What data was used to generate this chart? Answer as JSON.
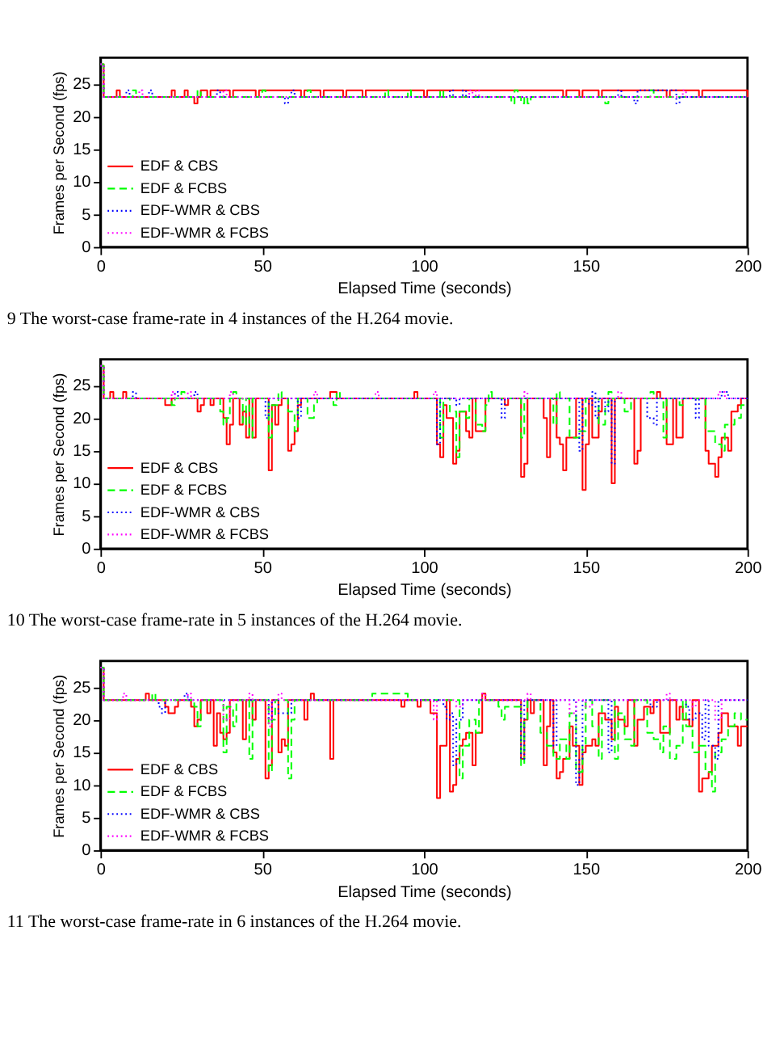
{
  "chart_data": [
    {
      "type": "step",
      "xlabel": "Elapsed Time (seconds)",
      "ylabel": "Frames per Second (fps)",
      "xlim": [
        0,
        200
      ],
      "xticks": [
        0,
        50,
        100,
        150,
        200
      ],
      "ylim": [
        0,
        29
      ],
      "yticks": [
        0,
        5,
        10,
        15,
        20,
        25
      ],
      "grid": false,
      "legend": "bottom left",
      "annotations": [
        "9 The worst-case frame-rate in 4 instances of the H.264 movie."
      ],
      "series": [
        {
          "name": "EDF & CBS",
          "color": "#ff0000",
          "line_style": "solid",
          "x": [
            0,
            1,
            5,
            6,
            22,
            23,
            26,
            27,
            29,
            30,
            31,
            33,
            34,
            40,
            41,
            48,
            49,
            62,
            63,
            68,
            69,
            75,
            76,
            81,
            82,
            100,
            101,
            143,
            144,
            148,
            149,
            154,
            155,
            175,
            176,
            185,
            186,
            200
          ],
          "values": [
            28,
            23,
            24,
            23,
            24,
            23,
            24,
            23,
            22,
            23,
            24,
            23,
            24,
            23,
            24,
            23,
            24,
            23,
            24,
            23,
            24,
            23,
            24,
            23,
            24,
            23,
            24,
            23,
            24,
            23,
            24,
            23,
            24,
            23,
            24,
            23,
            24,
            23
          ]
        },
        {
          "name": "EDF & FCBS",
          "color": "#00ff00",
          "line_style": "dashed",
          "x": [
            0,
            1,
            10,
            11,
            30,
            31,
            50,
            51,
            64,
            65,
            88,
            89,
            95,
            96,
            105,
            106,
            127,
            128,
            129,
            130,
            131,
            132,
            133,
            156,
            157,
            170,
            171,
            200
          ],
          "values": [
            28,
            23,
            24,
            23,
            24,
            23,
            24,
            23,
            24,
            23,
            24,
            23,
            24,
            23,
            24,
            23,
            22,
            24,
            23,
            22,
            23,
            22,
            23,
            22,
            23,
            24,
            23,
            23
          ]
        },
        {
          "name": "EDF-WMR & CBS",
          "color": "#0000ff",
          "line_style": "dotted",
          "x": [
            0,
            1,
            8,
            9,
            15,
            16,
            36,
            37,
            57,
            58,
            59,
            60,
            108,
            109,
            112,
            113,
            160,
            161,
            165,
            166,
            178,
            179,
            200
          ],
          "values": [
            28,
            23,
            24,
            23,
            24,
            23,
            24,
            23,
            22,
            23,
            24,
            23,
            24,
            23,
            24,
            23,
            24,
            23,
            22,
            24,
            22,
            23,
            23
          ]
        },
        {
          "name": "EDF-WMR & FCBS",
          "color": "#ff00ff",
          "line_style": "dotted",
          "x": [
            0,
            1,
            12,
            13,
            38,
            39,
            114,
            115,
            116,
            117,
            180,
            181,
            200
          ],
          "values": [
            28,
            23,
            24,
            23,
            24,
            23,
            24,
            23,
            24,
            23,
            24,
            23,
            23
          ]
        }
      ]
    },
    {
      "type": "step",
      "xlabel": "Elapsed Time (seconds)",
      "ylabel": "Frames per Second (fps)",
      "xlim": [
        0,
        200
      ],
      "xticks": [
        0,
        50,
        100,
        150,
        200
      ],
      "ylim": [
        0,
        29
      ],
      "yticks": [
        0,
        5,
        10,
        15,
        20,
        25
      ],
      "grid": false,
      "legend": "bottom left",
      "annotations": [
        "10 The worst-case frame-rate in 5 instances of the H.264 movie."
      ],
      "series": [
        {
          "name": "EDF & CBS",
          "color": "#ff0000",
          "line_style": "solid",
          "x": [
            0,
            1,
            3,
            4,
            7,
            8,
            20,
            22,
            30,
            31,
            32,
            34,
            35,
            38,
            39,
            40,
            41,
            43,
            44,
            45,
            46,
            47,
            48,
            52,
            53,
            54,
            55,
            56,
            58,
            59,
            60,
            61,
            62,
            71,
            73,
            97,
            98,
            104,
            105,
            106,
            107,
            109,
            110,
            111,
            113,
            114,
            115,
            116,
            119,
            125,
            126,
            130,
            131,
            132,
            137,
            138,
            139,
            141,
            142,
            143,
            144,
            147,
            149,
            150,
            151,
            152,
            154,
            155,
            158,
            159,
            165,
            166,
            167,
            172,
            173,
            175,
            177,
            178,
            180,
            186,
            187,
            188,
            190,
            191,
            192,
            194,
            195,
            197,
            198,
            200
          ],
          "values": [
            28,
            23,
            24,
            23,
            24,
            23,
            22,
            23,
            21,
            22,
            23,
            22,
            23,
            20,
            16,
            19,
            23,
            19,
            21,
            17,
            23,
            17,
            23,
            12,
            22,
            19,
            22,
            23,
            15,
            16,
            18,
            22,
            23,
            24,
            23,
            24,
            23,
            16,
            14,
            22,
            20,
            13,
            15,
            21,
            18,
            17,
            23,
            18,
            23,
            22,
            23,
            11,
            13,
            23,
            20,
            14,
            23,
            17,
            16,
            12,
            17,
            23,
            9,
            16,
            23,
            17,
            21,
            23,
            10,
            23,
            13,
            15,
            23,
            24,
            23,
            16,
            23,
            17,
            23,
            23,
            15,
            13,
            11,
            14,
            17,
            15,
            21,
            22,
            23,
            23
          ]
        },
        {
          "name": "EDF & FCBS",
          "color": "#00ff00",
          "line_style": "dashed",
          "x": [
            0,
            1,
            22,
            23,
            25,
            26,
            37,
            38,
            39,
            40,
            41,
            42,
            44,
            45,
            46,
            47,
            52,
            53,
            55,
            56,
            58,
            60,
            61,
            64,
            66,
            67,
            72,
            73,
            74,
            105,
            106,
            108,
            110,
            111,
            113,
            114,
            116,
            118,
            119,
            120,
            121,
            130,
            131,
            140,
            141,
            142,
            145,
            148,
            150,
            154,
            156,
            157,
            158,
            162,
            164,
            170,
            171,
            174,
            175,
            179,
            180,
            187,
            190,
            192,
            193,
            196,
            198,
            200
          ],
          "values": [
            28,
            23,
            22,
            23,
            24,
            23,
            21,
            19,
            20,
            23,
            24,
            23,
            19,
            23,
            17,
            23,
            17,
            22,
            24,
            23,
            21,
            18,
            23,
            20,
            22,
            23,
            22,
            24,
            23,
            17,
            23,
            21,
            14,
            21,
            20,
            23,
            19,
            18,
            22,
            24,
            23,
            17,
            23,
            19,
            24,
            23,
            17,
            18,
            23,
            19,
            22,
            24,
            23,
            21,
            23,
            24,
            23,
            17,
            23,
            22,
            23,
            18,
            16,
            15,
            19,
            20,
            22,
            22
          ]
        },
        {
          "name": "EDF-WMR & CBS",
          "color": "#0000ff",
          "line_style": "dotted",
          "x": [
            0,
            1,
            10,
            11,
            23,
            24,
            29,
            30,
            51,
            52,
            61,
            62,
            104,
            105,
            110,
            111,
            124,
            125,
            148,
            149,
            151,
            152,
            153,
            154,
            156,
            157,
            158,
            159,
            169,
            171,
            172,
            184,
            185,
            192,
            194,
            200
          ],
          "values": [
            28,
            23,
            24,
            23,
            24,
            23,
            24,
            23,
            20,
            23,
            20,
            23,
            16,
            23,
            22,
            23,
            20,
            23,
            15,
            23,
            22,
            24,
            20,
            23,
            21,
            23,
            13,
            23,
            20,
            19,
            23,
            20,
            23,
            24,
            23,
            23
          ]
        },
        {
          "name": "EDF-WMR & FCBS",
          "color": "#ff00ff",
          "line_style": "dotted",
          "x": [
            0,
            1,
            22,
            23,
            27,
            28,
            40,
            41,
            66,
            67,
            85,
            86,
            103,
            104,
            131,
            132,
            160,
            161,
            191,
            193,
            200
          ],
          "values": [
            28,
            23,
            24,
            23,
            24,
            23,
            24,
            23,
            24,
            23,
            24,
            23,
            24,
            23,
            24,
            23,
            24,
            23,
            24,
            23,
            23
          ]
        }
      ]
    },
    {
      "type": "step",
      "xlabel": "Elapsed Time (seconds)",
      "ylabel": "Frames per Second (fps)",
      "xlim": [
        0,
        200
      ],
      "xticks": [
        0,
        50,
        100,
        150,
        200
      ],
      "ylim": [
        0,
        29
      ],
      "yticks": [
        0,
        5,
        10,
        15,
        20,
        25
      ],
      "grid": false,
      "legend": "bottom left",
      "annotations": [
        "11 The worst-case frame-rate in 6 instances of the H.264 movie."
      ],
      "series": [
        {
          "name": "EDF & CBS",
          "color": "#ff0000",
          "line_style": "solid",
          "x": [
            0,
            1,
            14,
            15,
            20,
            21,
            23,
            24,
            28,
            29,
            30,
            31,
            33,
            34,
            35,
            36,
            37,
            38,
            39,
            40,
            44,
            45,
            47,
            48,
            51,
            52,
            53,
            55,
            56,
            57,
            58,
            63,
            64,
            65,
            66,
            71,
            72,
            93,
            94,
            98,
            99,
            102,
            104,
            105,
            107,
            108,
            109,
            110,
            111,
            112,
            113,
            115,
            116,
            118,
            119,
            130,
            131,
            132,
            133,
            134,
            137,
            138,
            139,
            140,
            141,
            142,
            143,
            145,
            146,
            148,
            149,
            150,
            152,
            153,
            154,
            156,
            158,
            159,
            160,
            162,
            163,
            165,
            166,
            168,
            170,
            171,
            173,
            176,
            178,
            179,
            180,
            182,
            183,
            185,
            186,
            188,
            189,
            191,
            192,
            194,
            197,
            198,
            200
          ],
          "values": [
            28,
            23,
            24,
            23,
            22,
            21,
            22,
            23,
            22,
            19,
            20,
            23,
            21,
            23,
            16,
            21,
            18,
            17,
            18,
            23,
            17,
            23,
            20,
            23,
            11,
            13,
            23,
            15,
            17,
            16,
            23,
            20,
            23,
            24,
            23,
            14,
            23,
            22,
            23,
            22,
            23,
            21,
            8,
            16,
            23,
            9,
            10,
            14,
            16,
            17,
            18,
            13,
            18,
            24,
            23,
            14,
            20,
            23,
            21,
            23,
            13,
            19,
            23,
            15,
            11,
            12,
            14,
            19,
            16,
            10,
            15,
            16,
            17,
            16,
            21,
            20,
            17,
            22,
            20,
            19,
            23,
            16,
            20,
            22,
            21,
            23,
            18,
            23,
            20,
            22,
            20,
            19,
            23,
            9,
            11,
            12,
            16,
            18,
            21,
            19,
            16,
            19,
            19
          ]
        },
        {
          "name": "EDF & FCBS",
          "color": "#00ff00",
          "line_style": "dashed",
          "x": [
            0,
            1,
            16,
            17,
            29,
            30,
            31,
            38,
            39,
            41,
            42,
            46,
            47,
            52,
            53,
            54,
            58,
            59,
            60,
            84,
            95,
            111,
            112,
            114,
            116,
            117,
            123,
            124,
            125,
            130,
            131,
            132,
            136,
            138,
            140,
            142,
            144,
            145,
            147,
            149,
            150,
            152,
            154,
            155,
            159,
            160,
            162,
            164,
            165,
            169,
            171,
            173,
            174,
            176,
            178,
            180,
            181,
            183,
            185,
            187,
            189,
            190,
            192,
            194,
            196,
            198,
            200
          ],
          "values": [
            28,
            23,
            24,
            23,
            22,
            19,
            23,
            15,
            22,
            19,
            23,
            14,
            23,
            12,
            20,
            23,
            11,
            20,
            23,
            24,
            23,
            11,
            16,
            20,
            18,
            23,
            22,
            20,
            22,
            13,
            20,
            23,
            18,
            16,
            14,
            17,
            14,
            21,
            12,
            16,
            23,
            19,
            14,
            23,
            14,
            21,
            17,
            16,
            23,
            18,
            17,
            15,
            19,
            14,
            16,
            23,
            19,
            15,
            16,
            12,
            9,
            15,
            17,
            19,
            21,
            20,
            20
          ]
        },
        {
          "name": "EDF-WMR & CBS",
          "color": "#0000ff",
          "line_style": "dotted",
          "x": [
            0,
            1,
            18,
            19,
            20,
            26,
            27,
            52,
            53,
            55,
            57,
            59,
            106,
            107,
            108,
            109,
            110,
            112,
            130,
            131,
            140,
            141,
            147,
            148,
            149,
            157,
            158,
            170,
            172,
            181,
            182,
            184,
            186,
            187,
            188,
            190,
            191,
            200
          ],
          "values": [
            28,
            23,
            22,
            21,
            23,
            24,
            23,
            20,
            23,
            21,
            21,
            23,
            22,
            20,
            21,
            13,
            20,
            23,
            14,
            23,
            16,
            23,
            10,
            14,
            23,
            15,
            23,
            22,
            23,
            22,
            20,
            21,
            17,
            23,
            16,
            14,
            23,
            23
          ]
        },
        {
          "name": "EDF-WMR & FCBS",
          "color": "#ff00ff",
          "line_style": "dotted",
          "x": [
            0,
            1,
            7,
            8,
            27,
            28,
            38,
            40,
            46,
            47,
            52,
            53,
            55,
            56,
            103,
            104,
            110,
            112,
            118,
            119,
            132,
            133,
            145,
            147,
            150,
            152,
            175,
            176,
            183,
            184,
            190,
            192,
            200
          ],
          "values": [
            28,
            23,
            24,
            23,
            24,
            23,
            20,
            23,
            24,
            23,
            19,
            23,
            24,
            23,
            20,
            23,
            22,
            23,
            24,
            23,
            24,
            23,
            21,
            23,
            22,
            23,
            24,
            23,
            22,
            23,
            20,
            23,
            23
          ]
        }
      ]
    }
  ]
}
